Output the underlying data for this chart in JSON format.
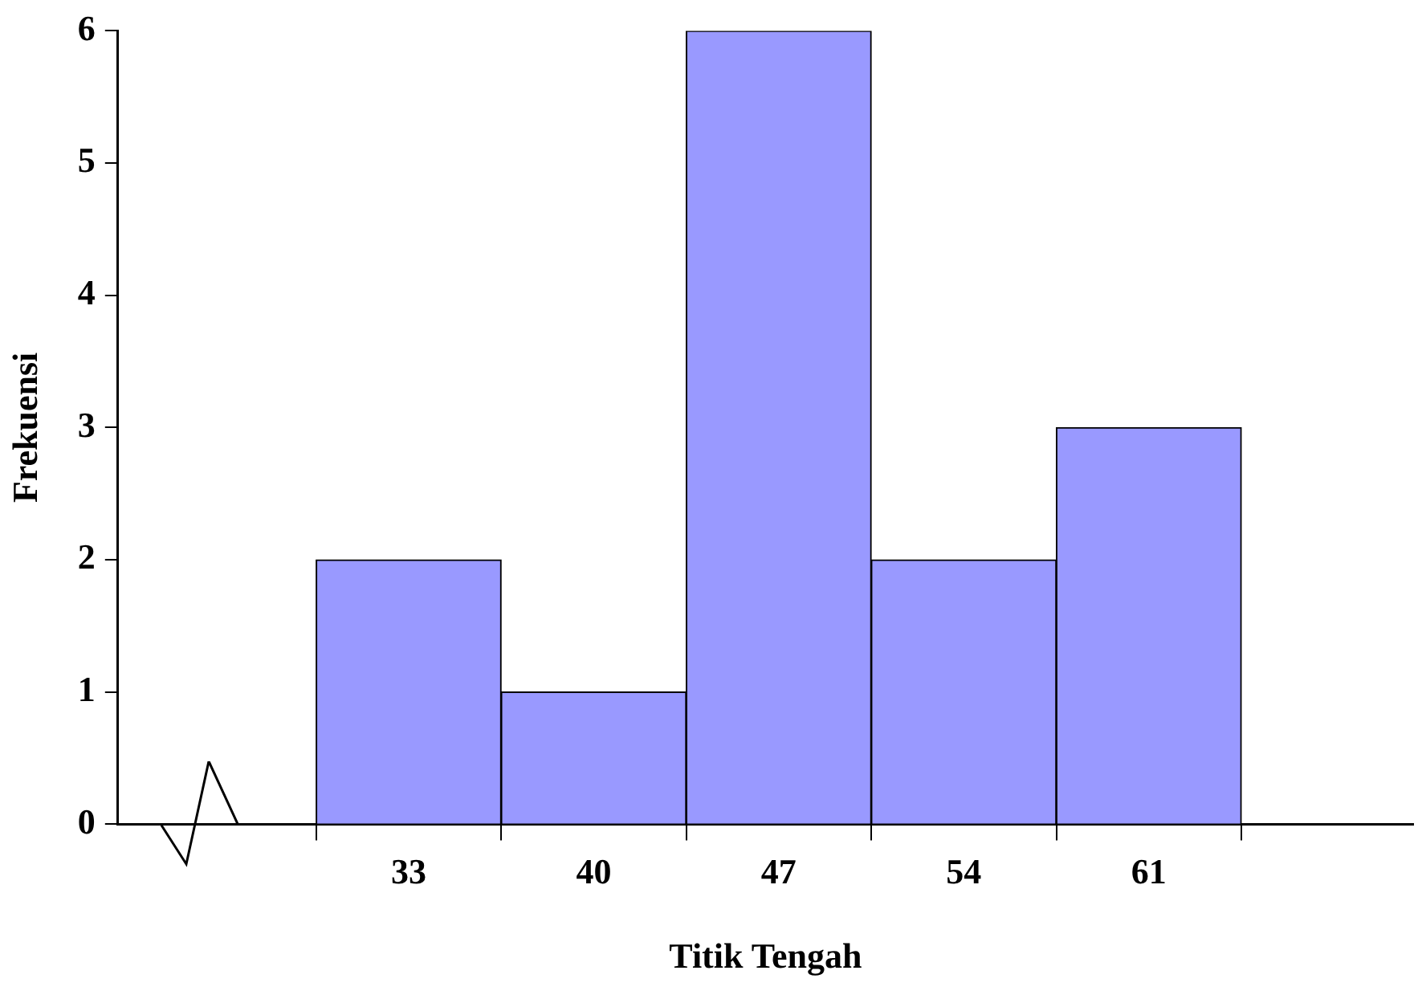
{
  "chart_data": {
    "type": "histogram",
    "xlabel": "Titik Tengah",
    "ylabel": "Frekuensi",
    "bins": [
      29.5,
      36.5,
      43.5,
      50.5,
      57.5,
      64.5
    ],
    "values": [
      2,
      1,
      6,
      2,
      3
    ],
    "color": "#9999ff",
    "xlim": [
      22,
      71
    ],
    "xticks": [
      {
        "value": 29.5,
        "label": null
      },
      33,
      {
        "value": 36.5,
        "label": null
      },
      40,
      {
        "value": 43.5,
        "label": null
      },
      47,
      {
        "value": 50.5,
        "label": null
      },
      54,
      {
        "value": 57.5,
        "label": null
      },
      61,
      {
        "value": 64.5,
        "label": null
      }
    ],
    "ylim": [
      0,
      6
    ],
    "yticks": [
      0,
      1,
      2,
      3,
      4,
      5,
      6
    ],
    "grid": false,
    "legend": false
  }
}
